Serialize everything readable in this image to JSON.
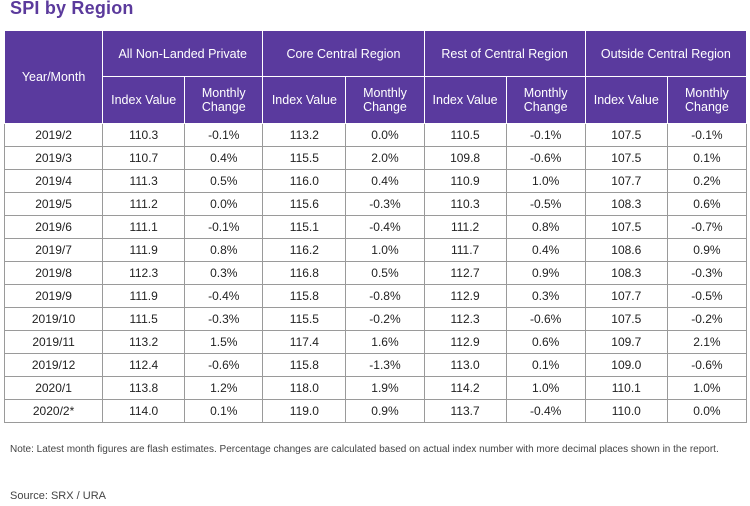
{
  "title": "SPI by Region",
  "chart_data": {
    "type": "table",
    "title": "SPI by Region",
    "row_header": "Year/Month",
    "groups": [
      "All Non-Landed Private",
      "Core Central Region",
      "Rest of Central Region",
      "Outside Central Region"
    ],
    "subcolumns": [
      "Index Value",
      "Monthly Change"
    ],
    "rows": [
      {
        "period": "2019/2",
        "values": [
          "110.3",
          "-0.1%",
          "113.2",
          "0.0%",
          "110.5",
          "-0.1%",
          "107.5",
          "-0.1%"
        ]
      },
      {
        "period": "2019/3",
        "values": [
          "110.7",
          "0.4%",
          "115.5",
          "2.0%",
          "109.8",
          "-0.6%",
          "107.5",
          "0.1%"
        ]
      },
      {
        "period": "2019/4",
        "values": [
          "111.3",
          "0.5%",
          "116.0",
          "0.4%",
          "110.9",
          "1.0%",
          "107.7",
          "0.2%"
        ]
      },
      {
        "period": "2019/5",
        "values": [
          "111.2",
          "0.0%",
          "115.6",
          "-0.3%",
          "110.3",
          "-0.5%",
          "108.3",
          "0.6%"
        ]
      },
      {
        "period": "2019/6",
        "values": [
          "111.1",
          "-0.1%",
          "115.1",
          "-0.4%",
          "111.2",
          "0.8%",
          "107.5",
          "-0.7%"
        ]
      },
      {
        "period": "2019/7",
        "values": [
          "111.9",
          "0.8%",
          "116.2",
          "1.0%",
          "111.7",
          "0.4%",
          "108.6",
          "0.9%"
        ]
      },
      {
        "period": "2019/8",
        "values": [
          "112.3",
          "0.3%",
          "116.8",
          "0.5%",
          "112.7",
          "0.9%",
          "108.3",
          "-0.3%"
        ]
      },
      {
        "period": "2019/9",
        "values": [
          "111.9",
          "-0.4%",
          "115.8",
          "-0.8%",
          "112.9",
          "0.3%",
          "107.7",
          "-0.5%"
        ]
      },
      {
        "period": "2019/10",
        "values": [
          "111.5",
          "-0.3%",
          "115.5",
          "-0.2%",
          "112.3",
          "-0.6%",
          "107.5",
          "-0.2%"
        ]
      },
      {
        "period": "2019/11",
        "values": [
          "113.2",
          "1.5%",
          "117.4",
          "1.6%",
          "112.9",
          "0.6%",
          "109.7",
          "2.1%"
        ]
      },
      {
        "period": "2019/12",
        "values": [
          "112.4",
          "-0.6%",
          "115.8",
          "-1.3%",
          "113.0",
          "0.1%",
          "109.0",
          "-0.6%"
        ]
      },
      {
        "period": "2020/1",
        "values": [
          "113.8",
          "1.2%",
          "118.0",
          "1.9%",
          "114.2",
          "1.0%",
          "110.1",
          "1.0%"
        ]
      },
      {
        "period": "2020/2*",
        "values": [
          "114.0",
          "0.1%",
          "119.0",
          "0.9%",
          "113.7",
          "-0.4%",
          "110.0",
          "0.0%"
        ]
      }
    ]
  },
  "note": "Note: Latest month figures are flash estimates. Percentage changes are calculated based on actual index number with more decimal places shown in the report.",
  "source": "Source: SRX / URA",
  "colors": {
    "header_bg": "#5a3a9e",
    "title": "#5b3a9c"
  }
}
